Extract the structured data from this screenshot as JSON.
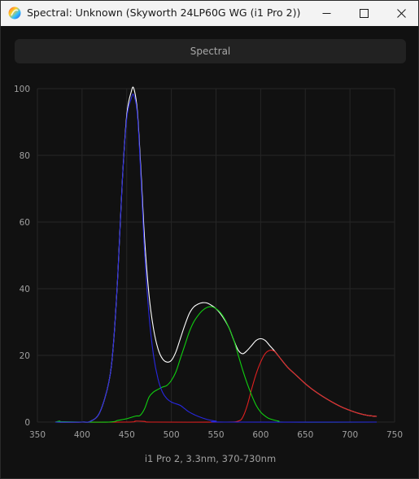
{
  "window": {
    "title": "Spectral: Unknown (Skyworth 24LP60G WG (i1 Pro 2))",
    "icon": "app-logo-icon",
    "controls": {
      "minimize_icon": "minimize-icon",
      "maximize_icon": "maximize-icon",
      "close_icon": "close-icon"
    }
  },
  "mode_bar": {
    "label": "Spectral"
  },
  "caption": "i1 Pro 2, 3.3nm, 370-730nm",
  "colors": {
    "background": "#111111",
    "grid": "#262626",
    "white_series": "#ffffff",
    "red_series": "#e02020",
    "green_series": "#10d010",
    "blue_series": "#2828e0"
  },
  "chart_data": {
    "type": "line",
    "title": "",
    "xlabel": "",
    "ylabel": "",
    "xlim": [
      350,
      750
    ],
    "ylim": [
      0,
      100
    ],
    "x_ticks": [
      350,
      400,
      450,
      500,
      550,
      600,
      650,
      700,
      750
    ],
    "y_ticks": [
      0,
      20,
      40,
      60,
      80,
      100
    ],
    "grid": true,
    "legend": "none",
    "series": [
      {
        "color": "#ffffff",
        "points": [
          [
            370,
            0
          ],
          [
            400,
            0
          ],
          [
            410,
            0.3
          ],
          [
            420,
            3
          ],
          [
            430,
            12
          ],
          [
            435,
            23
          ],
          [
            440,
            44
          ],
          [
            445,
            72
          ],
          [
            450,
            92
          ],
          [
            455,
            99
          ],
          [
            458,
            100
          ],
          [
            462,
            93
          ],
          [
            466,
            75
          ],
          [
            470,
            55
          ],
          [
            475,
            38
          ],
          [
            480,
            28
          ],
          [
            485,
            22
          ],
          [
            490,
            19
          ],
          [
            495,
            18
          ],
          [
            500,
            18.5
          ],
          [
            505,
            21
          ],
          [
            510,
            25
          ],
          [
            515,
            29
          ],
          [
            520,
            32.5
          ],
          [
            525,
            34.5
          ],
          [
            530,
            35.4
          ],
          [
            535,
            35.8
          ],
          [
            540,
            35.7
          ],
          [
            545,
            35
          ],
          [
            550,
            34
          ],
          [
            555,
            32.5
          ],
          [
            560,
            30.5
          ],
          [
            565,
            28
          ],
          [
            570,
            24.5
          ],
          [
            575,
            21.5
          ],
          [
            580,
            20.5
          ],
          [
            585,
            21.5
          ],
          [
            590,
            23
          ],
          [
            595,
            24.5
          ],
          [
            600,
            25
          ],
          [
            605,
            24.5
          ],
          [
            610,
            23
          ],
          [
            615,
            21.5
          ],
          [
            620,
            19.8
          ],
          [
            630,
            16.5
          ],
          [
            640,
            14
          ],
          [
            650,
            11.5
          ],
          [
            660,
            9.4
          ],
          [
            670,
            7.6
          ],
          [
            680,
            6
          ],
          [
            690,
            4.6
          ],
          [
            700,
            3.5
          ],
          [
            710,
            2.6
          ],
          [
            720,
            2
          ],
          [
            730,
            1.7
          ]
        ]
      },
      {
        "color": "#e02020",
        "points": [
          [
            370,
            0
          ],
          [
            450,
            0
          ],
          [
            460,
            0.3
          ],
          [
            470,
            0.2
          ],
          [
            480,
            0
          ],
          [
            560,
            0
          ],
          [
            575,
            0.3
          ],
          [
            580,
            1.5
          ],
          [
            585,
            5
          ],
          [
            590,
            10
          ],
          [
            595,
            14.5
          ],
          [
            600,
            18
          ],
          [
            605,
            20.5
          ],
          [
            610,
            21.5
          ],
          [
            615,
            21.3
          ],
          [
            620,
            19.8
          ],
          [
            630,
            16.5
          ],
          [
            640,
            14
          ],
          [
            650,
            11.5
          ],
          [
            660,
            9.4
          ],
          [
            670,
            7.6
          ],
          [
            680,
            6
          ],
          [
            690,
            4.6
          ],
          [
            700,
            3.5
          ],
          [
            710,
            2.6
          ],
          [
            720,
            2
          ],
          [
            730,
            1.7
          ]
        ]
      },
      {
        "color": "#10d010",
        "points": [
          [
            370,
            0
          ],
          [
            375,
            0.3
          ],
          [
            380,
            0.1
          ],
          [
            430,
            0
          ],
          [
            440,
            0.5
          ],
          [
            450,
            1
          ],
          [
            460,
            1.8
          ],
          [
            465,
            2
          ],
          [
            470,
            4
          ],
          [
            475,
            7.5
          ],
          [
            480,
            9
          ],
          [
            485,
            9.8
          ],
          [
            490,
            10.5
          ],
          [
            495,
            11
          ],
          [
            500,
            12.5
          ],
          [
            505,
            15
          ],
          [
            510,
            19
          ],
          [
            515,
            23
          ],
          [
            520,
            27
          ],
          [
            525,
            30
          ],
          [
            530,
            32
          ],
          [
            535,
            33.5
          ],
          [
            540,
            34.4
          ],
          [
            545,
            34.6
          ],
          [
            550,
            34
          ],
          [
            555,
            32.8
          ],
          [
            560,
            30.8
          ],
          [
            565,
            28
          ],
          [
            570,
            24.5
          ],
          [
            575,
            20
          ],
          [
            580,
            15.5
          ],
          [
            585,
            11.5
          ],
          [
            590,
            8
          ],
          [
            595,
            5
          ],
          [
            600,
            3
          ],
          [
            605,
            1.8
          ],
          [
            610,
            1
          ],
          [
            620,
            0.3
          ],
          [
            630,
            0
          ],
          [
            730,
            0
          ]
        ]
      },
      {
        "color": "#2828e0",
        "points": [
          [
            370,
            0
          ],
          [
            400,
            0
          ],
          [
            410,
            0.3
          ],
          [
            420,
            3
          ],
          [
            430,
            12
          ],
          [
            435,
            23
          ],
          [
            440,
            44
          ],
          [
            445,
            72
          ],
          [
            450,
            91
          ],
          [
            455,
            97
          ],
          [
            458,
            98
          ],
          [
            462,
            92
          ],
          [
            466,
            73
          ],
          [
            470,
            51
          ],
          [
            475,
            32
          ],
          [
            480,
            20
          ],
          [
            485,
            13
          ],
          [
            490,
            9
          ],
          [
            495,
            7
          ],
          [
            500,
            6
          ],
          [
            505,
            5.5
          ],
          [
            510,
            5
          ],
          [
            515,
            4
          ],
          [
            520,
            3
          ],
          [
            530,
            1.7
          ],
          [
            540,
            0.8
          ],
          [
            550,
            0.3
          ],
          [
            560,
            0
          ],
          [
            730,
            0
          ]
        ]
      }
    ]
  }
}
